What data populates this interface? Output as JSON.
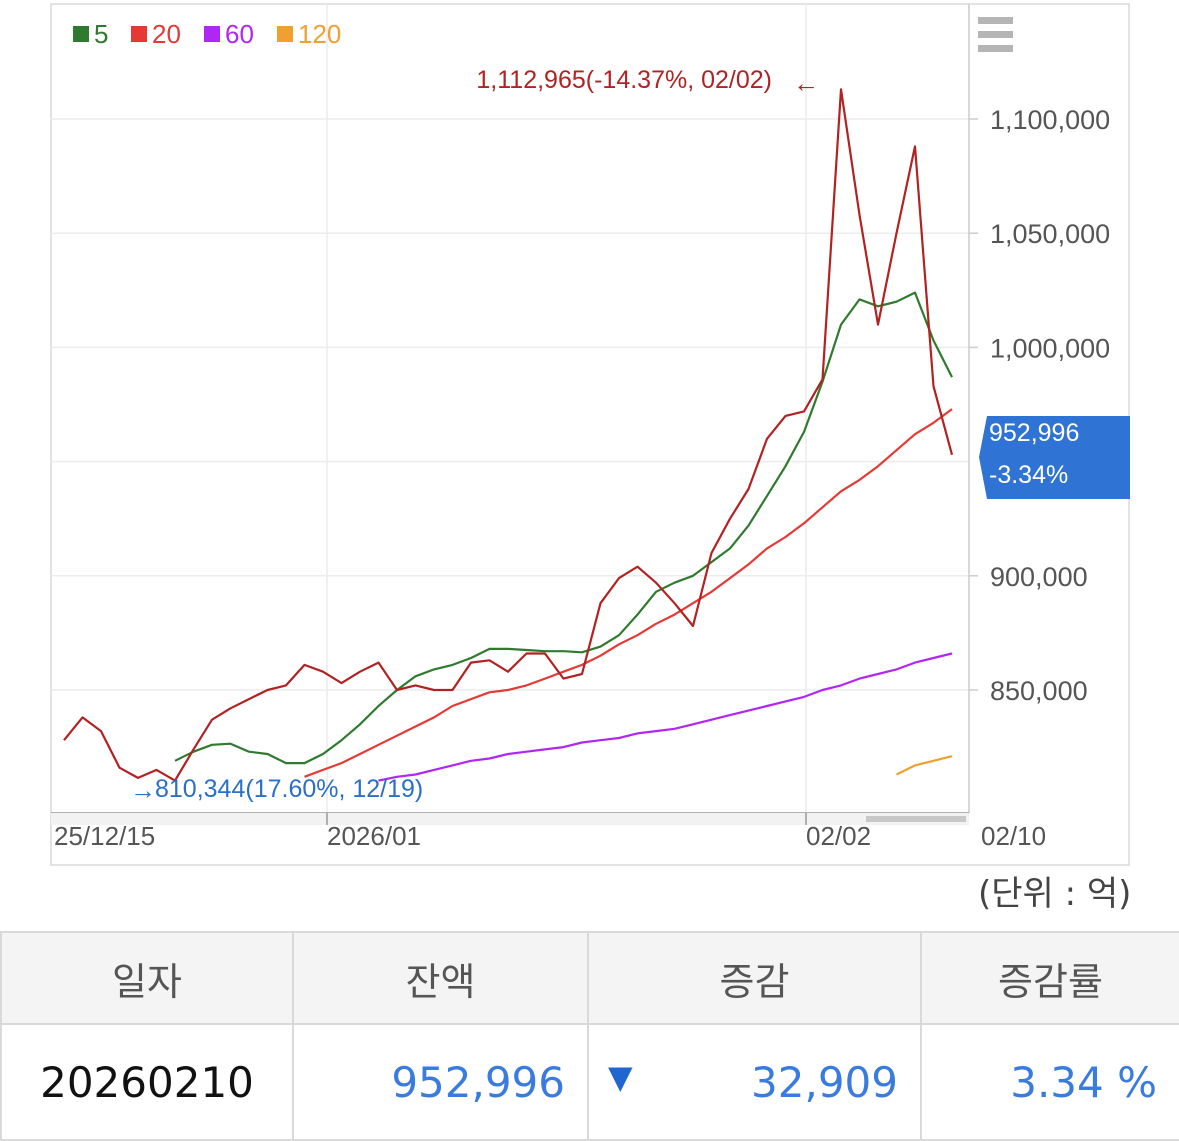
{
  "legend": [
    {
      "label": "5",
      "color": "#2f7a2f"
    },
    {
      "label": "20",
      "color": "#e53935"
    },
    {
      "label": "60",
      "color": "#b027f5"
    },
    {
      "label": "120",
      "color": "#f0a030"
    }
  ],
  "menu_icon": "hamburger-icon",
  "unit_label": "(단위 : 억)",
  "chart_data": {
    "type": "line",
    "x_ticks": [
      "25/12/15",
      "2026/01",
      "02/02",
      "02/10"
    ],
    "y_ticks": [
      "850,000",
      "900,000",
      "1,000,000",
      "1,050,000",
      "1,100,000"
    ],
    "ylim": [
      805000,
      1140000
    ],
    "grid": true,
    "legend_position": "top-left",
    "high_annotation": {
      "text": "1,112,965(-14.37%, 02/02)",
      "arrow": "←",
      "value": 1112965
    },
    "low_annotation": {
      "text": "810,344(17.60%, 12/19)",
      "arrow": "→",
      "value": 810344
    },
    "last_value": {
      "value": "952,996",
      "change": "-3.34%"
    },
    "series": [
      {
        "name": "balance",
        "color": "#b22222",
        "values": [
          828000,
          838000,
          832000,
          816000,
          811500,
          815000,
          810344,
          824000,
          837000,
          842000,
          846000,
          850000,
          852000,
          861000,
          858000,
          853000,
          858000,
          862000,
          850000,
          852000,
          850000,
          850000,
          862000,
          863000,
          858000,
          866000,
          866000,
          855000,
          857000,
          888000,
          899000,
          904000,
          897000,
          888000,
          878000,
          910000,
          925000,
          938000,
          960000,
          970000,
          972000,
          986000,
          1112965,
          1058000,
          1010000,
          1050000,
          1088000,
          983000,
          952996
        ]
      },
      {
        "name": "5",
        "color": "#2f7a2f",
        "values": [
          819000,
          823000,
          826000,
          826500,
          823000,
          822000,
          818000,
          818000,
          822000,
          828000,
          835000,
          843000,
          850000,
          856000,
          859000,
          861000,
          864000,
          868000,
          868000,
          867500,
          867000,
          867000,
          866500,
          869000,
          874000,
          883000,
          893000,
          897000,
          900000,
          906000,
          912000,
          922000,
          935000,
          948000,
          963000,
          985000,
          1010000,
          1021000,
          1018000,
          1020000,
          1024000,
          1003000,
          987000
        ]
      },
      {
        "name": "20",
        "color": "#e53935",
        "values": [
          812000,
          815000,
          818000,
          822000,
          826000,
          830000,
          834000,
          838000,
          843000,
          846000,
          849000,
          850000,
          852000,
          855000,
          858000,
          861000,
          865000,
          870000,
          874000,
          879000,
          883000,
          888000,
          893000,
          899000,
          905000,
          912000,
          917000,
          923000,
          930000,
          937000,
          942000,
          948000,
          955000,
          962000,
          967000,
          973000
        ]
      },
      {
        "name": "60",
        "color": "#b027f5",
        "values": [
          810344,
          812000,
          813000,
          815000,
          817000,
          819000,
          820000,
          822000,
          823000,
          824000,
          825000,
          827000,
          828000,
          829000,
          831000,
          832000,
          833000,
          835000,
          837000,
          839000,
          841000,
          843000,
          845000,
          847000,
          850000,
          852000,
          855000,
          857000,
          859000,
          862000,
          864000,
          866000
        ]
      },
      {
        "name": "120",
        "color": "#f0a030",
        "values": [
          813000,
          817000,
          819000,
          821000
        ]
      }
    ]
  },
  "table": {
    "headers": [
      "일자",
      "잔액",
      "증감",
      "증감률"
    ],
    "rows": [
      {
        "date": "20260210",
        "balance": "952,996",
        "arrow": "▼",
        "delta": "32,909",
        "rate": "3.34 %"
      }
    ]
  }
}
